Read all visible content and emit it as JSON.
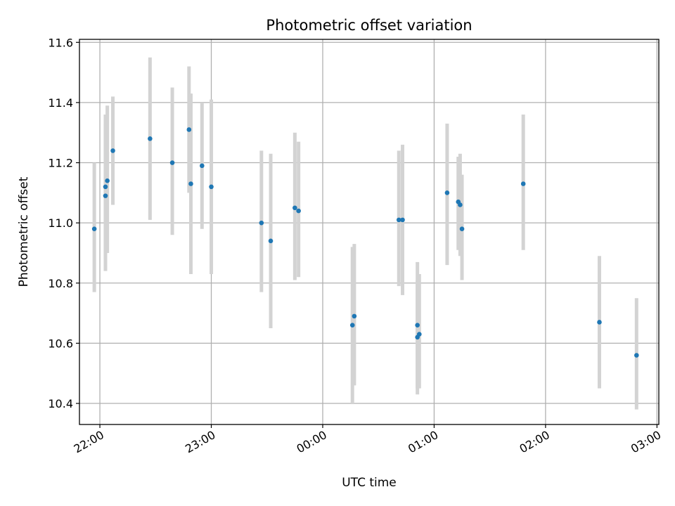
{
  "chart_data": {
    "type": "scatter",
    "title": "Photometric offset variation",
    "xlabel": "UTC time",
    "ylabel": "Photometric offset",
    "x_ticks": [
      "22:00",
      "23:00",
      "00:00",
      "01:00",
      "02:00",
      "03:00"
    ],
    "y_ticks": [
      "10.4",
      "10.6",
      "10.8",
      "11.0",
      "11.2",
      "11.4",
      "11.6"
    ],
    "ylim": [
      10.33,
      11.61
    ],
    "xlim": [
      "21:49",
      "03:01"
    ],
    "grid": true,
    "colors": {
      "point": "#1f77b4",
      "errorbar": "#d3d3d3",
      "grid": "#b0b0b0"
    },
    "points": [
      {
        "t": "21:57",
        "y": 10.98,
        "lo": 10.77,
        "hi": 11.2
      },
      {
        "t": "22:03",
        "y": 11.09,
        "lo": 10.84,
        "hi": 11.33
      },
      {
        "t": "22:03",
        "y": 11.12,
        "lo": 10.88,
        "hi": 11.36
      },
      {
        "t": "22:04",
        "y": 11.14,
        "lo": 10.9,
        "hi": 11.39
      },
      {
        "t": "22:07",
        "y": 11.24,
        "lo": 11.06,
        "hi": 11.42
      },
      {
        "t": "22:27",
        "y": 11.28,
        "lo": 11.01,
        "hi": 11.55
      },
      {
        "t": "22:39",
        "y": 11.2,
        "lo": 10.96,
        "hi": 11.45
      },
      {
        "t": "22:48",
        "y": 11.31,
        "lo": 11.1,
        "hi": 11.52
      },
      {
        "t": "22:49",
        "y": 11.13,
        "lo": 10.83,
        "hi": 11.43
      },
      {
        "t": "22:55",
        "y": 11.19,
        "lo": 10.98,
        "hi": 11.4
      },
      {
        "t": "23:00",
        "y": 11.12,
        "lo": 10.83,
        "hi": 11.41
      },
      {
        "t": "23:27",
        "y": 11.0,
        "lo": 10.77,
        "hi": 11.24
      },
      {
        "t": "23:32",
        "y": 10.94,
        "lo": 10.65,
        "hi": 11.23
      },
      {
        "t": "23:45",
        "y": 11.05,
        "lo": 10.81,
        "hi": 11.3
      },
      {
        "t": "23:47",
        "y": 11.04,
        "lo": 10.82,
        "hi": 11.27
      },
      {
        "t": "00:16",
        "y": 10.66,
        "lo": 10.4,
        "hi": 10.92
      },
      {
        "t": "00:17",
        "y": 10.69,
        "lo": 10.46,
        "hi": 10.93
      },
      {
        "t": "00:41",
        "y": 11.01,
        "lo": 10.79,
        "hi": 11.24
      },
      {
        "t": "00:43",
        "y": 11.01,
        "lo": 10.76,
        "hi": 11.26
      },
      {
        "t": "00:51",
        "y": 10.66,
        "lo": 10.45,
        "hi": 10.87
      },
      {
        "t": "00:51",
        "y": 10.62,
        "lo": 10.43,
        "hi": 10.81
      },
      {
        "t": "00:52",
        "y": 10.63,
        "lo": 10.45,
        "hi": 10.83
      },
      {
        "t": "01:07",
        "y": 11.1,
        "lo": 10.86,
        "hi": 11.33
      },
      {
        "t": "01:13",
        "y": 11.07,
        "lo": 10.91,
        "hi": 11.22
      },
      {
        "t": "01:14",
        "y": 11.06,
        "lo": 10.89,
        "hi": 11.23
      },
      {
        "t": "01:15",
        "y": 10.98,
        "lo": 10.81,
        "hi": 11.16
      },
      {
        "t": "01:48",
        "y": 11.13,
        "lo": 10.91,
        "hi": 11.36
      },
      {
        "t": "02:29",
        "y": 10.67,
        "lo": 10.45,
        "hi": 10.89
      },
      {
        "t": "02:49",
        "y": 10.56,
        "lo": 10.38,
        "hi": 10.75
      }
    ]
  }
}
